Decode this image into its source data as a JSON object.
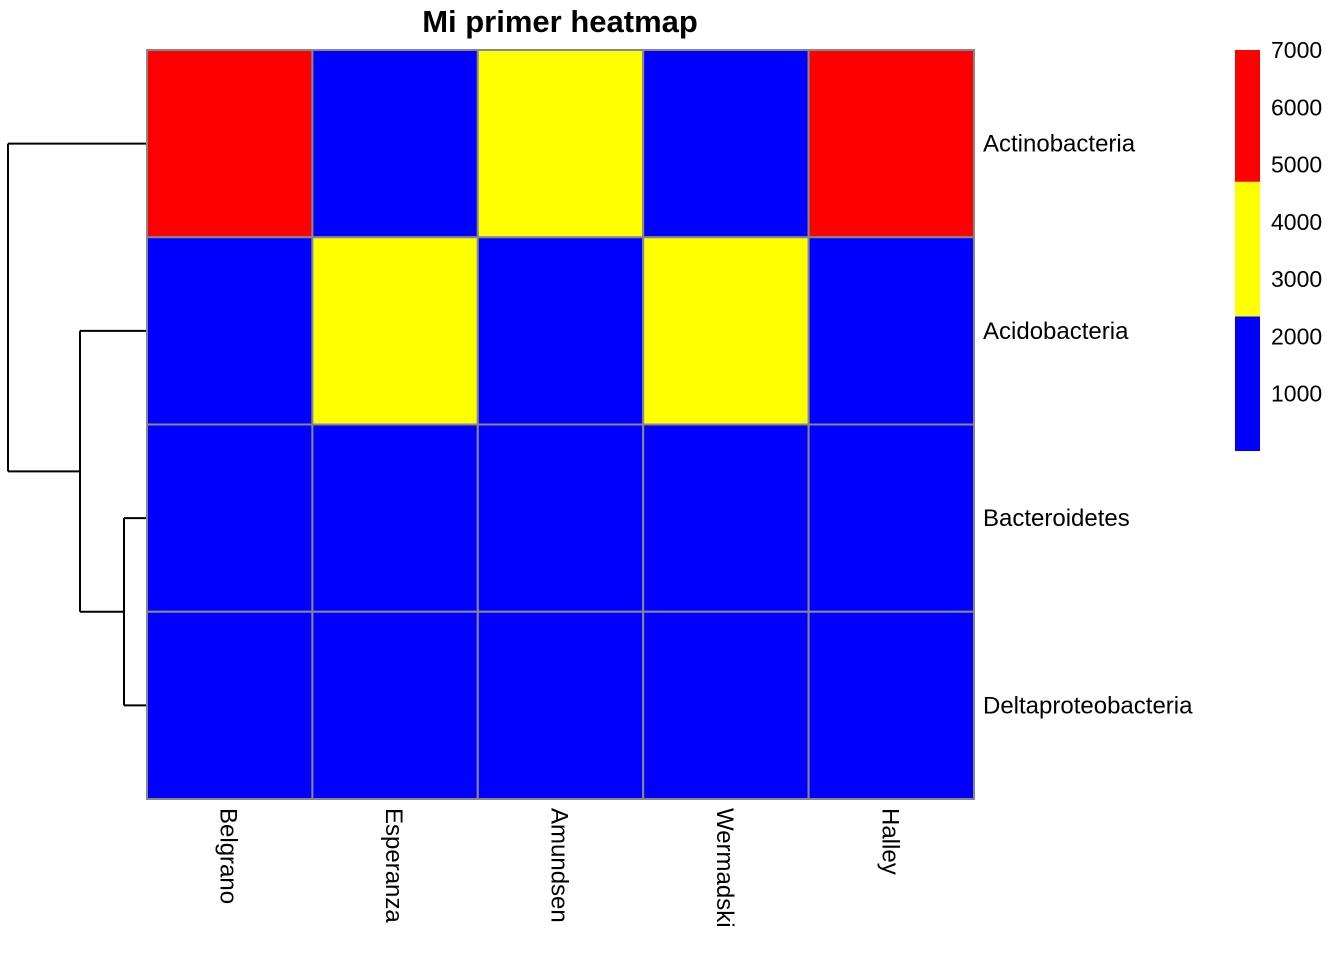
{
  "chart_data": {
    "type": "heatmap",
    "title": "Mi primer heatmap",
    "rows": [
      "Actinobacteria",
      "Acidobacteria",
      "Bacteroidetes",
      "Deltaproteobacteria"
    ],
    "columns": [
      "Belgrano",
      "Esperanza",
      "Amundsen",
      "Wermadski",
      "Halley"
    ],
    "values": [
      [
        6500,
        1500,
        4000,
        1500,
        6500
      ],
      [
        1500,
        4000,
        1500,
        4000,
        1500
      ],
      [
        1000,
        1000,
        1000,
        1000,
        1000
      ],
      [
        1000,
        1000,
        1000,
        1000,
        1000
      ]
    ],
    "legend": {
      "ticks": [
        "7000",
        "6000",
        "5000",
        "4000",
        "3000",
        "2000",
        "1000"
      ],
      "range": [
        0,
        7000
      ],
      "breaks": [
        {
          "from": 0,
          "to": 2350,
          "color": "#0000FF"
        },
        {
          "from": 2350,
          "to": 4700,
          "color": "#FFFF00"
        },
        {
          "from": 4700,
          "to": 7000,
          "color": "#FF0000"
        }
      ]
    },
    "row_dendrogram": true,
    "grid_color": "#888888"
  }
}
